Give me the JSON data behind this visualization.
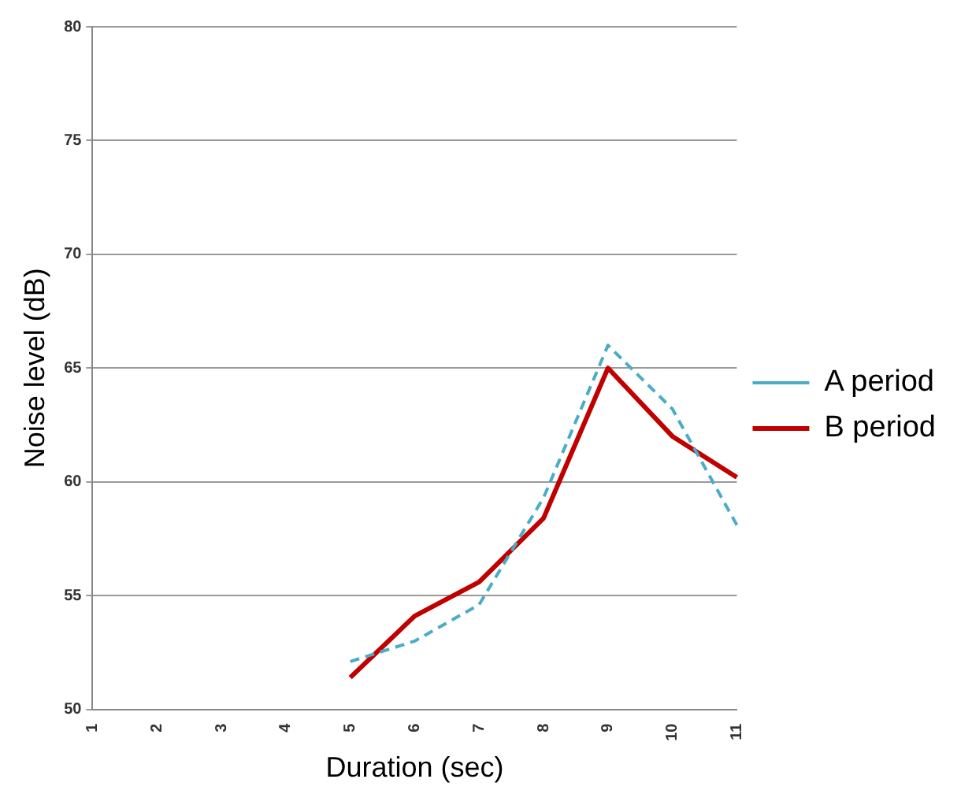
{
  "chart_data": {
    "type": "line",
    "xlabel": "Duration (sec)",
    "ylabel": "Noise level (dB)",
    "categories": [
      "1",
      "2",
      "3",
      "4",
      "5",
      "6",
      "7",
      "8",
      "9",
      "10",
      "11"
    ],
    "series": [
      {
        "name": "A period",
        "color": "#4bacc6",
        "line_style": "dashed",
        "values": [
          null,
          null,
          null,
          null,
          52.1,
          53.0,
          54.6,
          59.3,
          66.0,
          63.2,
          58.1
        ]
      },
      {
        "name": "B period",
        "color": "#c00000",
        "line_style": "solid",
        "values": [
          null,
          null,
          null,
          null,
          51.4,
          54.1,
          55.6,
          58.4,
          65.0,
          62.0,
          60.2
        ]
      }
    ],
    "ylim": [
      50,
      80
    ],
    "yticks": [
      50,
      55,
      60,
      65,
      70,
      75,
      80
    ],
    "grid": "y",
    "legend": "right",
    "marker": "none"
  }
}
